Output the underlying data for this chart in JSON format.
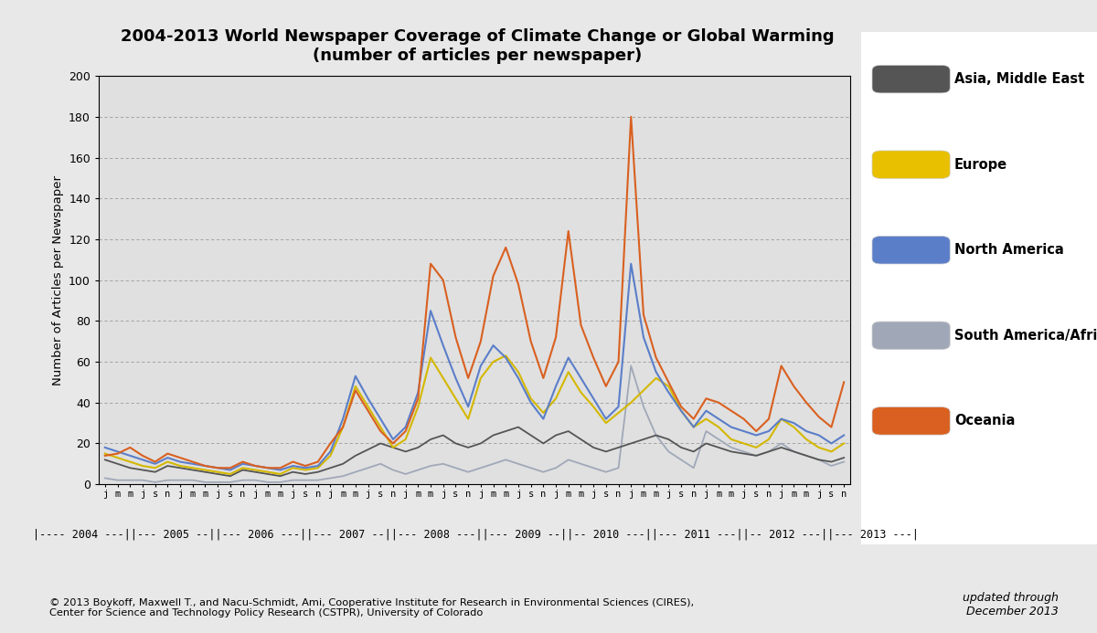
{
  "title": "2004-2013 World Newspaper Coverage of Climate Change or Global Warming\n(number of articles per newspaper)",
  "ylabel": "Number of Articles per Newspaper",
  "ylim": [
    0,
    200
  ],
  "yticks": [
    0,
    20,
    40,
    60,
    80,
    100,
    120,
    140,
    160,
    180,
    200
  ],
  "fig_bg_color": "#e8e8e8",
  "plot_bg_color": "#e0e0e0",
  "legend_bg_color": "#ffffff",
  "legend_labels": [
    "Asia, Middle East",
    "Europe",
    "North America",
    "South America/Africa",
    "Oceania"
  ],
  "legend_colors": [
    "#555555",
    "#e8c000",
    "#5b7ec9",
    "#a0a8b8",
    "#d96020"
  ],
  "line_colors": {
    "asia": "#555555",
    "europe": "#d4b800",
    "north_america": "#5b7ec9",
    "south_america": "#a0a8b8",
    "oceania": "#d96020"
  },
  "month_labels": [
    "j",
    "m",
    "m",
    "j",
    "s",
    "n",
    "j",
    "m",
    "m",
    "j",
    "s",
    "n",
    "j",
    "m",
    "m",
    "j",
    "s",
    "n",
    "j",
    "m",
    "m",
    "j",
    "s",
    "n",
    "j",
    "m",
    "m",
    "j",
    "s",
    "n",
    "j",
    "m",
    "m",
    "j",
    "s",
    "n",
    "j",
    "m",
    "m",
    "j",
    "s",
    "n",
    "j",
    "m",
    "m",
    "j",
    "s",
    "n",
    "j",
    "m",
    "m",
    "j",
    "s",
    "n",
    "j",
    "m",
    "m",
    "j",
    "s",
    "n"
  ],
  "year_label_text": "|---- 2004 ---||--- 2005 --||--- 2006 ---||--- 2007 --||--- 2008 ---||--- 2009 --||-- 2010 ---||--- 2011 ---||-- 2012 ---||--- 2013 ---|",
  "copyright": "© 2013 Boykoff, Maxwell T., and Nacu-Schmidt, Ami, Cooperative Institute for Research in Environmental Sciences (CIRES),\nCenter for Science and Technology Policy Research (CSTPR), University of Colorado",
  "updated": "updated through\nDecember 2013",
  "asia": [
    12,
    10,
    8,
    7,
    6,
    9,
    8,
    7,
    6,
    5,
    4,
    7,
    6,
    5,
    4,
    6,
    5,
    6,
    8,
    10,
    14,
    17,
    20,
    18,
    16,
    18,
    22,
    24,
    20,
    18,
    20,
    24,
    26,
    28,
    24,
    20,
    24,
    26,
    22,
    18,
    16,
    18,
    20,
    22,
    24,
    22,
    18,
    16,
    20,
    18,
    16,
    15,
    14,
    16,
    18,
    16,
    14,
    12,
    11,
    13
  ],
  "europe": [
    15,
    13,
    11,
    9,
    8,
    11,
    9,
    8,
    7,
    6,
    5,
    8,
    7,
    6,
    5,
    8,
    7,
    8,
    14,
    28,
    48,
    38,
    28,
    18,
    22,
    38,
    62,
    52,
    42,
    32,
    52,
    60,
    63,
    55,
    42,
    35,
    42,
    55,
    45,
    38,
    30,
    35,
    40,
    46,
    52,
    48,
    36,
    28,
    32,
    28,
    22,
    20,
    18,
    22,
    32,
    28,
    22,
    18,
    16,
    20
  ],
  "north_america": [
    18,
    16,
    14,
    12,
    10,
    13,
    11,
    10,
    9,
    8,
    7,
    10,
    9,
    8,
    7,
    9,
    8,
    9,
    16,
    32,
    53,
    42,
    32,
    22,
    28,
    45,
    85,
    68,
    52,
    38,
    58,
    68,
    62,
    52,
    40,
    32,
    48,
    62,
    52,
    42,
    32,
    38,
    108,
    72,
    55,
    45,
    36,
    28,
    36,
    32,
    28,
    26,
    24,
    26,
    32,
    30,
    26,
    24,
    20,
    24
  ],
  "south_america": [
    3,
    2,
    2,
    2,
    1,
    2,
    2,
    2,
    1,
    1,
    1,
    2,
    2,
    1,
    1,
    2,
    2,
    2,
    3,
    4,
    6,
    8,
    10,
    7,
    5,
    7,
    9,
    10,
    8,
    6,
    8,
    10,
    12,
    10,
    8,
    6,
    8,
    12,
    10,
    8,
    6,
    8,
    58,
    38,
    24,
    16,
    12,
    8,
    26,
    22,
    18,
    16,
    14,
    16,
    20,
    16,
    14,
    12,
    9,
    11
  ],
  "oceania": [
    14,
    15,
    18,
    14,
    11,
    15,
    13,
    11,
    9,
    8,
    8,
    11,
    9,
    8,
    8,
    11,
    9,
    11,
    20,
    28,
    46,
    36,
    26,
    20,
    26,
    42,
    108,
    100,
    72,
    52,
    70,
    102,
    116,
    98,
    70,
    52,
    72,
    124,
    78,
    62,
    48,
    60,
    180,
    83,
    62,
    50,
    38,
    32,
    42,
    40,
    36,
    32,
    26,
    32,
    58,
    48,
    40,
    33,
    28,
    50
  ]
}
